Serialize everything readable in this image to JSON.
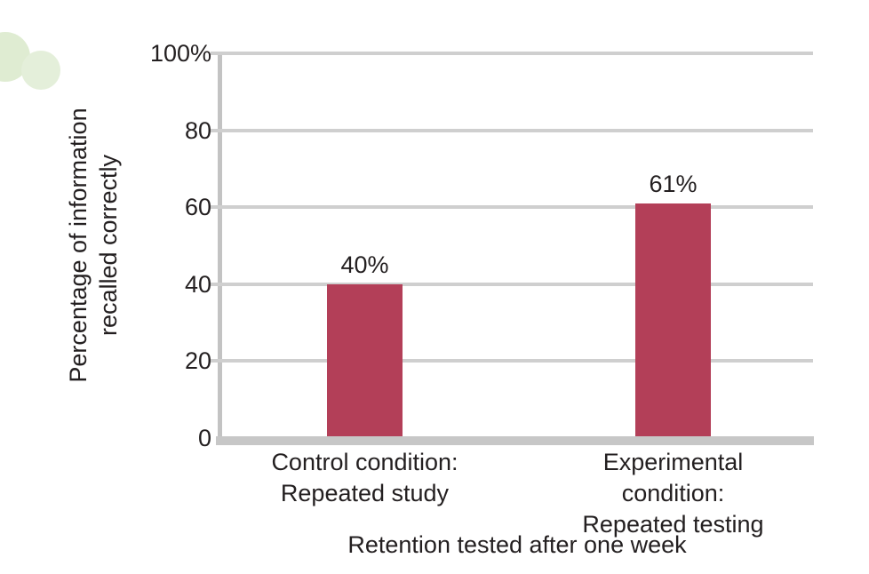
{
  "figure": {
    "background_color": "#ffffff",
    "text_color": "#231f20"
  },
  "decor": {
    "circles": [
      {
        "name": "partial-circle-top-left",
        "color": "#dfecd2"
      },
      {
        "name": "small-circle-top-left",
        "color": "#e4efda"
      }
    ]
  },
  "chart_data": {
    "type": "bar",
    "title": "",
    "xlabel": "Retention tested after one week",
    "ylabel_lines": [
      "Percentage of information",
      "recalled correctly"
    ],
    "categories": [
      {
        "lines": [
          "Control condition:",
          "Repeated study"
        ]
      },
      {
        "lines": [
          "Experimental condition:",
          "Repeated testing"
        ]
      }
    ],
    "values": [
      40,
      61
    ],
    "value_labels": [
      "40%",
      "61%"
    ],
    "ylim": [
      0,
      100
    ],
    "yticks": [
      {
        "value": 0,
        "label": "0"
      },
      {
        "value": 20,
        "label": "20"
      },
      {
        "value": 40,
        "label": "40"
      },
      {
        "value": 60,
        "label": "60"
      },
      {
        "value": 80,
        "label": "80"
      },
      {
        "value": 100,
        "label": "100%"
      }
    ],
    "grid": true,
    "legend": "none",
    "bar_color": "#b33f58",
    "gridline_color": "#cfcfcf",
    "y_axis_color": "#c3c3c3",
    "x_axis_color": "#c7c7c7"
  }
}
